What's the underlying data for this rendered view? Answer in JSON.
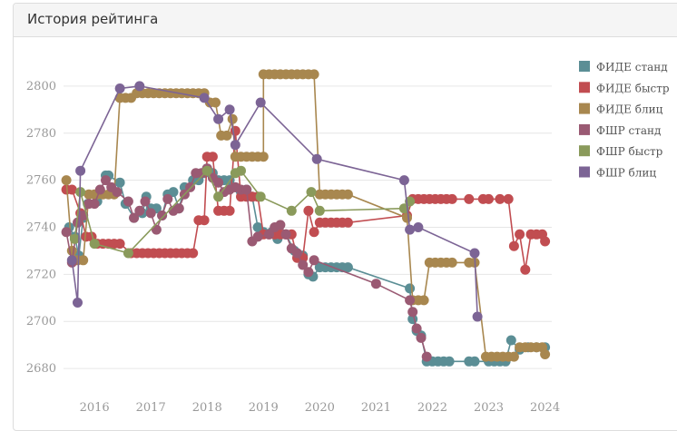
{
  "panel": {
    "title": "История рейтинга"
  },
  "chart_data": {
    "type": "line",
    "title": "История рейтинга",
    "xlabel": "",
    "ylabel": "",
    "xlim": [
      2015.45,
      2024.12
    ],
    "ylim": [
      2670,
      2815
    ],
    "x_ticks": [
      "2016",
      "2017",
      "2018",
      "2019",
      "2020",
      "2021",
      "2022",
      "2023",
      "2024"
    ],
    "y_ticks": [
      "2680",
      "2700",
      "2720",
      "2740",
      "2760",
      "2780",
      "2800"
    ],
    "legend_position": "right",
    "series": [
      {
        "name": "ФИДЕ станд",
        "color": "#5b8e95",
        "points": [
          [
            2015.55,
            2740
          ],
          [
            2015.65,
            2736
          ],
          [
            2015.72,
            2728
          ],
          [
            2015.8,
            2744
          ],
          [
            2015.88,
            2750
          ],
          [
            2016.05,
            2751
          ],
          [
            2016.2,
            2762
          ],
          [
            2016.25,
            2762
          ],
          [
            2016.45,
            2759
          ],
          [
            2016.55,
            2750
          ],
          [
            2016.7,
            2744
          ],
          [
            2016.85,
            2746
          ],
          [
            2016.92,
            2753
          ],
          [
            2017.0,
            2748
          ],
          [
            2017.1,
            2748
          ],
          [
            2017.2,
            2745
          ],
          [
            2017.3,
            2754
          ],
          [
            2017.4,
            2755
          ],
          [
            2017.5,
            2748
          ],
          [
            2017.6,
            2757
          ],
          [
            2017.75,
            2760
          ],
          [
            2017.85,
            2760
          ],
          [
            2017.95,
            2763
          ],
          [
            2018.0,
            2765
          ],
          [
            2018.1,
            2763
          ],
          [
            2018.2,
            2760
          ],
          [
            2018.3,
            2760
          ],
          [
            2018.4,
            2760
          ],
          [
            2018.5,
            2757
          ],
          [
            2018.6,
            2755
          ],
          [
            2018.7,
            2756
          ],
          [
            2018.8,
            2753
          ],
          [
            2018.9,
            2740
          ],
          [
            2019.0,
            2738
          ],
          [
            2019.15,
            2738
          ],
          [
            2019.25,
            2735
          ],
          [
            2019.4,
            2737
          ],
          [
            2019.55,
            2730
          ],
          [
            2019.7,
            2728
          ],
          [
            2019.8,
            2720
          ],
          [
            2019.88,
            2719
          ],
          [
            2020.0,
            2723
          ],
          [
            2020.1,
            2723
          ],
          [
            2020.2,
            2723
          ],
          [
            2020.3,
            2723
          ],
          [
            2020.4,
            2723
          ],
          [
            2020.5,
            2723
          ],
          [
            2021.6,
            2714
          ],
          [
            2021.65,
            2701
          ],
          [
            2021.72,
            2696
          ],
          [
            2021.8,
            2694
          ],
          [
            2021.9,
            2683
          ],
          [
            2022.0,
            2683
          ],
          [
            2022.1,
            2683
          ],
          [
            2022.2,
            2683
          ],
          [
            2022.3,
            2683
          ],
          [
            2022.65,
            2683
          ],
          [
            2022.75,
            2683
          ],
          [
            2023.0,
            2683
          ],
          [
            2023.1,
            2683
          ],
          [
            2023.2,
            2683
          ],
          [
            2023.3,
            2683
          ],
          [
            2023.4,
            2692
          ],
          [
            2023.55,
            2688
          ],
          [
            2023.7,
            2689
          ],
          [
            2023.85,
            2689
          ],
          [
            2024.0,
            2689
          ]
        ]
      },
      {
        "name": "ФИДЕ быстр",
        "color": "#c14d51",
        "points": [
          [
            2015.5,
            2756
          ],
          [
            2015.6,
            2756
          ],
          [
            2015.75,
            2746
          ],
          [
            2015.85,
            2736
          ],
          [
            2015.95,
            2736
          ],
          [
            2016.05,
            2733
          ],
          [
            2016.15,
            2733
          ],
          [
            2016.25,
            2733
          ],
          [
            2016.35,
            2733
          ],
          [
            2016.45,
            2733
          ],
          [
            2016.65,
            2729
          ],
          [
            2016.75,
            2729
          ],
          [
            2016.85,
            2729
          ],
          [
            2016.95,
            2729
          ],
          [
            2017.05,
            2729
          ],
          [
            2017.15,
            2729
          ],
          [
            2017.25,
            2729
          ],
          [
            2017.35,
            2729
          ],
          [
            2017.45,
            2729
          ],
          [
            2017.55,
            2729
          ],
          [
            2017.65,
            2729
          ],
          [
            2017.75,
            2729
          ],
          [
            2017.85,
            2743
          ],
          [
            2017.95,
            2743
          ],
          [
            2018.0,
            2770
          ],
          [
            2018.1,
            2770
          ],
          [
            2018.2,
            2747
          ],
          [
            2018.3,
            2747
          ],
          [
            2018.4,
            2747
          ],
          [
            2018.5,
            2781
          ],
          [
            2018.6,
            2753
          ],
          [
            2018.7,
            2753
          ],
          [
            2018.8,
            2753
          ],
          [
            2018.9,
            2753
          ],
          [
            2019.0,
            2737
          ],
          [
            2019.1,
            2737
          ],
          [
            2019.2,
            2737
          ],
          [
            2019.3,
            2737
          ],
          [
            2019.4,
            2737
          ],
          [
            2019.5,
            2737
          ],
          [
            2019.6,
            2727
          ],
          [
            2019.7,
            2727
          ],
          [
            2019.8,
            2747
          ],
          [
            2019.9,
            2738
          ],
          [
            2020.0,
            2742
          ],
          [
            2020.1,
            2742
          ],
          [
            2020.2,
            2742
          ],
          [
            2020.3,
            2742
          ],
          [
            2020.4,
            2742
          ],
          [
            2020.5,
            2742
          ],
          [
            2021.55,
            2745
          ],
          [
            2021.65,
            2752
          ],
          [
            2021.75,
            2752
          ],
          [
            2021.85,
            2752
          ],
          [
            2021.95,
            2752
          ],
          [
            2022.05,
            2752
          ],
          [
            2022.15,
            2752
          ],
          [
            2022.25,
            2752
          ],
          [
            2022.35,
            2752
          ],
          [
            2022.65,
            2752
          ],
          [
            2022.9,
            2752
          ],
          [
            2023.0,
            2752
          ],
          [
            2023.2,
            2752
          ],
          [
            2023.35,
            2752
          ],
          [
            2023.45,
            2732
          ],
          [
            2023.55,
            2737
          ],
          [
            2023.65,
            2722
          ],
          [
            2023.75,
            2737
          ],
          [
            2023.85,
            2737
          ],
          [
            2023.95,
            2737
          ],
          [
            2024.0,
            2734
          ]
        ]
      },
      {
        "name": "ФИДЕ блиц",
        "color": "#a8874f",
        "points": [
          [
            2015.5,
            2760
          ],
          [
            2015.6,
            2730
          ],
          [
            2015.7,
            2726
          ],
          [
            2015.8,
            2726
          ],
          [
            2015.9,
            2754
          ],
          [
            2016.0,
            2754
          ],
          [
            2016.05,
            2754
          ],
          [
            2016.15,
            2754
          ],
          [
            2016.25,
            2754
          ],
          [
            2016.35,
            2754
          ],
          [
            2016.45,
            2795
          ],
          [
            2016.55,
            2795
          ],
          [
            2016.65,
            2795
          ],
          [
            2016.75,
            2797
          ],
          [
            2016.85,
            2797
          ],
          [
            2016.95,
            2797
          ],
          [
            2017.05,
            2797
          ],
          [
            2017.15,
            2797
          ],
          [
            2017.25,
            2797
          ],
          [
            2017.35,
            2797
          ],
          [
            2017.45,
            2797
          ],
          [
            2017.55,
            2797
          ],
          [
            2017.65,
            2797
          ],
          [
            2017.75,
            2797
          ],
          [
            2017.85,
            2797
          ],
          [
            2017.95,
            2797
          ],
          [
            2018.05,
            2793
          ],
          [
            2018.15,
            2793
          ],
          [
            2018.25,
            2779
          ],
          [
            2018.35,
            2779
          ],
          [
            2018.45,
            2786
          ],
          [
            2018.5,
            2770
          ],
          [
            2018.6,
            2770
          ],
          [
            2018.7,
            2770
          ],
          [
            2018.8,
            2770
          ],
          [
            2018.9,
            2770
          ],
          [
            2019.0,
            2770
          ],
          [
            2019.0,
            2805
          ],
          [
            2019.1,
            2805
          ],
          [
            2019.2,
            2805
          ],
          [
            2019.3,
            2805
          ],
          [
            2019.4,
            2805
          ],
          [
            2019.5,
            2805
          ],
          [
            2019.6,
            2805
          ],
          [
            2019.7,
            2805
          ],
          [
            2019.8,
            2805
          ],
          [
            2019.9,
            2805
          ],
          [
            2020.0,
            2754
          ],
          [
            2020.1,
            2754
          ],
          [
            2020.2,
            2754
          ],
          [
            2020.3,
            2754
          ],
          [
            2020.4,
            2754
          ],
          [
            2020.5,
            2754
          ],
          [
            2021.55,
            2744
          ],
          [
            2021.65,
            2709
          ],
          [
            2021.75,
            2709
          ],
          [
            2021.85,
            2709
          ],
          [
            2021.95,
            2725
          ],
          [
            2022.05,
            2725
          ],
          [
            2022.15,
            2725
          ],
          [
            2022.25,
            2725
          ],
          [
            2022.35,
            2725
          ],
          [
            2022.65,
            2725
          ],
          [
            2022.75,
            2725
          ],
          [
            2022.95,
            2685
          ],
          [
            2023.05,
            2685
          ],
          [
            2023.15,
            2685
          ],
          [
            2023.25,
            2685
          ],
          [
            2023.35,
            2685
          ],
          [
            2023.45,
            2685
          ],
          [
            2023.55,
            2689
          ],
          [
            2023.65,
            2689
          ],
          [
            2023.75,
            2689
          ],
          [
            2023.85,
            2689
          ],
          [
            2023.95,
            2689
          ],
          [
            2024.0,
            2686
          ]
        ]
      },
      {
        "name": "ФШР станд",
        "color": "#9a5a73",
        "points": [
          [
            2015.5,
            2738
          ],
          [
            2015.6,
            2725
          ],
          [
            2015.7,
            2742
          ],
          [
            2015.8,
            2745
          ],
          [
            2015.9,
            2750
          ],
          [
            2016.0,
            2750
          ],
          [
            2016.1,
            2756
          ],
          [
            2016.2,
            2760
          ],
          [
            2016.3,
            2757
          ],
          [
            2016.4,
            2755
          ],
          [
            2016.6,
            2751
          ],
          [
            2016.7,
            2744
          ],
          [
            2016.8,
            2747
          ],
          [
            2016.9,
            2751
          ],
          [
            2017.0,
            2746
          ],
          [
            2017.1,
            2739
          ],
          [
            2017.2,
            2745
          ],
          [
            2017.3,
            2752
          ],
          [
            2017.4,
            2747
          ],
          [
            2017.5,
            2748
          ],
          [
            2017.6,
            2754
          ],
          [
            2017.7,
            2757
          ],
          [
            2017.8,
            2763
          ],
          [
            2017.9,
            2763
          ],
          [
            2018.0,
            2765
          ],
          [
            2018.1,
            2761
          ],
          [
            2018.2,
            2759
          ],
          [
            2018.3,
            2755
          ],
          [
            2018.4,
            2756
          ],
          [
            2018.5,
            2757
          ],
          [
            2018.6,
            2756
          ],
          [
            2018.7,
            2756
          ],
          [
            2018.8,
            2734
          ],
          [
            2018.9,
            2736
          ],
          [
            2019.1,
            2737
          ],
          [
            2019.2,
            2740
          ],
          [
            2019.3,
            2741
          ],
          [
            2019.4,
            2737
          ],
          [
            2019.5,
            2731
          ],
          [
            2019.6,
            2729
          ],
          [
            2019.7,
            2724
          ],
          [
            2019.8,
            2721
          ],
          [
            2019.9,
            2726
          ],
          [
            2021.0,
            2716
          ],
          [
            2021.6,
            2709
          ],
          [
            2021.65,
            2704
          ],
          [
            2021.72,
            2697
          ],
          [
            2021.8,
            2693
          ],
          [
            2021.9,
            2685
          ]
        ]
      },
      {
        "name": "ФШР быстр",
        "color": "#8a9a5b",
        "points": [
          [
            2015.65,
            2735
          ],
          [
            2015.75,
            2755
          ],
          [
            2016.0,
            2733
          ],
          [
            2016.6,
            2729
          ],
          [
            2018.0,
            2764
          ],
          [
            2018.2,
            2753
          ],
          [
            2018.5,
            2763
          ],
          [
            2018.6,
            2764
          ],
          [
            2018.95,
            2753
          ],
          [
            2019.5,
            2747
          ],
          [
            2019.85,
            2755
          ],
          [
            2020.0,
            2747
          ],
          [
            2021.5,
            2748
          ],
          [
            2021.6,
            2751
          ]
        ]
      },
      {
        "name": "ФШР блиц",
        "color": "#7c6495",
        "points": [
          [
            2015.6,
            2726
          ],
          [
            2015.7,
            2708
          ],
          [
            2015.75,
            2764
          ],
          [
            2016.45,
            2799
          ],
          [
            2016.8,
            2800
          ],
          [
            2017.95,
            2795
          ],
          [
            2018.2,
            2786
          ],
          [
            2018.4,
            2790
          ],
          [
            2018.5,
            2775
          ],
          [
            2018.95,
            2793
          ],
          [
            2019.95,
            2769
          ],
          [
            2021.5,
            2760
          ],
          [
            2021.6,
            2739
          ],
          [
            2021.75,
            2740
          ],
          [
            2022.75,
            2729
          ],
          [
            2022.8,
            2702
          ]
        ]
      }
    ]
  }
}
